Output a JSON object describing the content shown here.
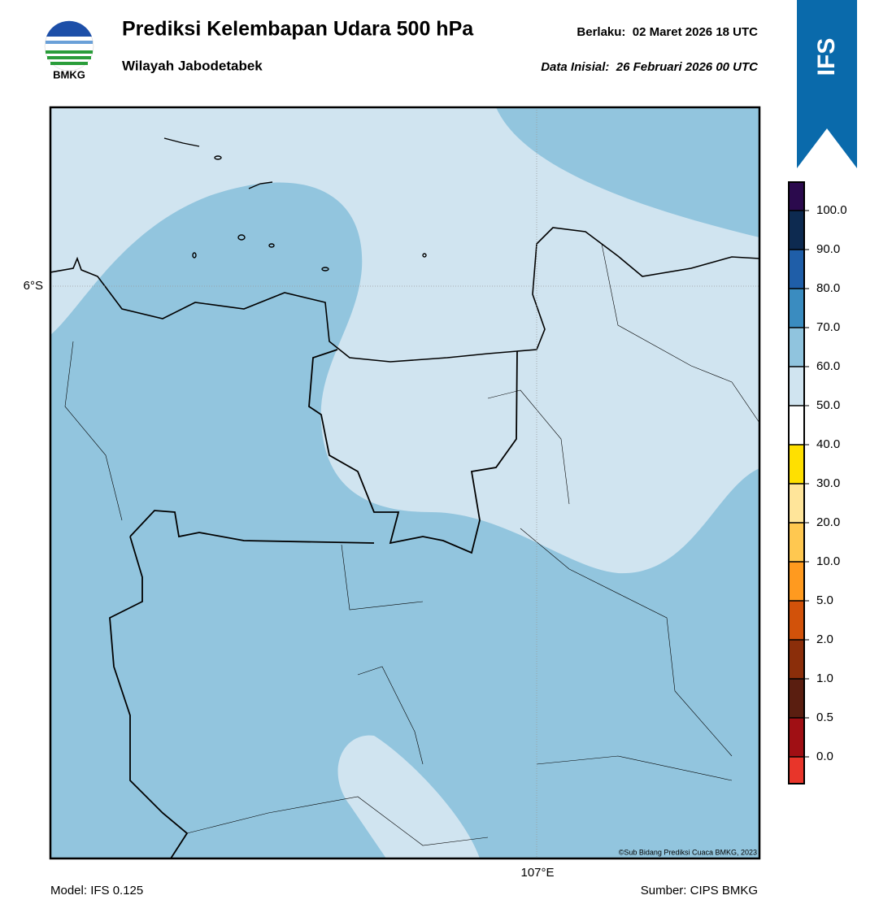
{
  "header": {
    "logo_text": "BMKG",
    "title": "Prediksi Kelembapan Udara 500 hPa",
    "subtitle": "Wilayah Jabodetabek",
    "valid": "Berlaku:  02 Maret 2026 18 UTC",
    "init": "Data Inisial:  26 Februari 2026 00 UTC",
    "badge": "IFS"
  },
  "map": {
    "lat_label": "6°S",
    "lon_label": "107°E",
    "credit": "©Sub Bidang Prediksi Cuaca BMKG, 2023"
  },
  "colorbar": {
    "labels": [
      "100.0",
      "90.0",
      "80.0",
      "70.0",
      "60.0",
      "50.0",
      "40.0",
      "30.0",
      "20.0",
      "10.0",
      "5.0",
      "2.0",
      "1.0",
      "0.5",
      "0.0"
    ],
    "colors": [
      "#2b0a4d",
      "#0d2a50",
      "#1f5ea8",
      "#3a8cc0",
      "#90c4de",
      "#d0e4f0",
      "#ffffff",
      "#ffe000",
      "#ffe59a",
      "#ffc850",
      "#ff9a1f",
      "#d2520a",
      "#8b2e0a",
      "#5a1e10",
      "#a00f14",
      "#e8352a"
    ]
  },
  "footer": {
    "model": "Model: IFS 0.125",
    "source": "Sumber: CIPS BMKG"
  }
}
